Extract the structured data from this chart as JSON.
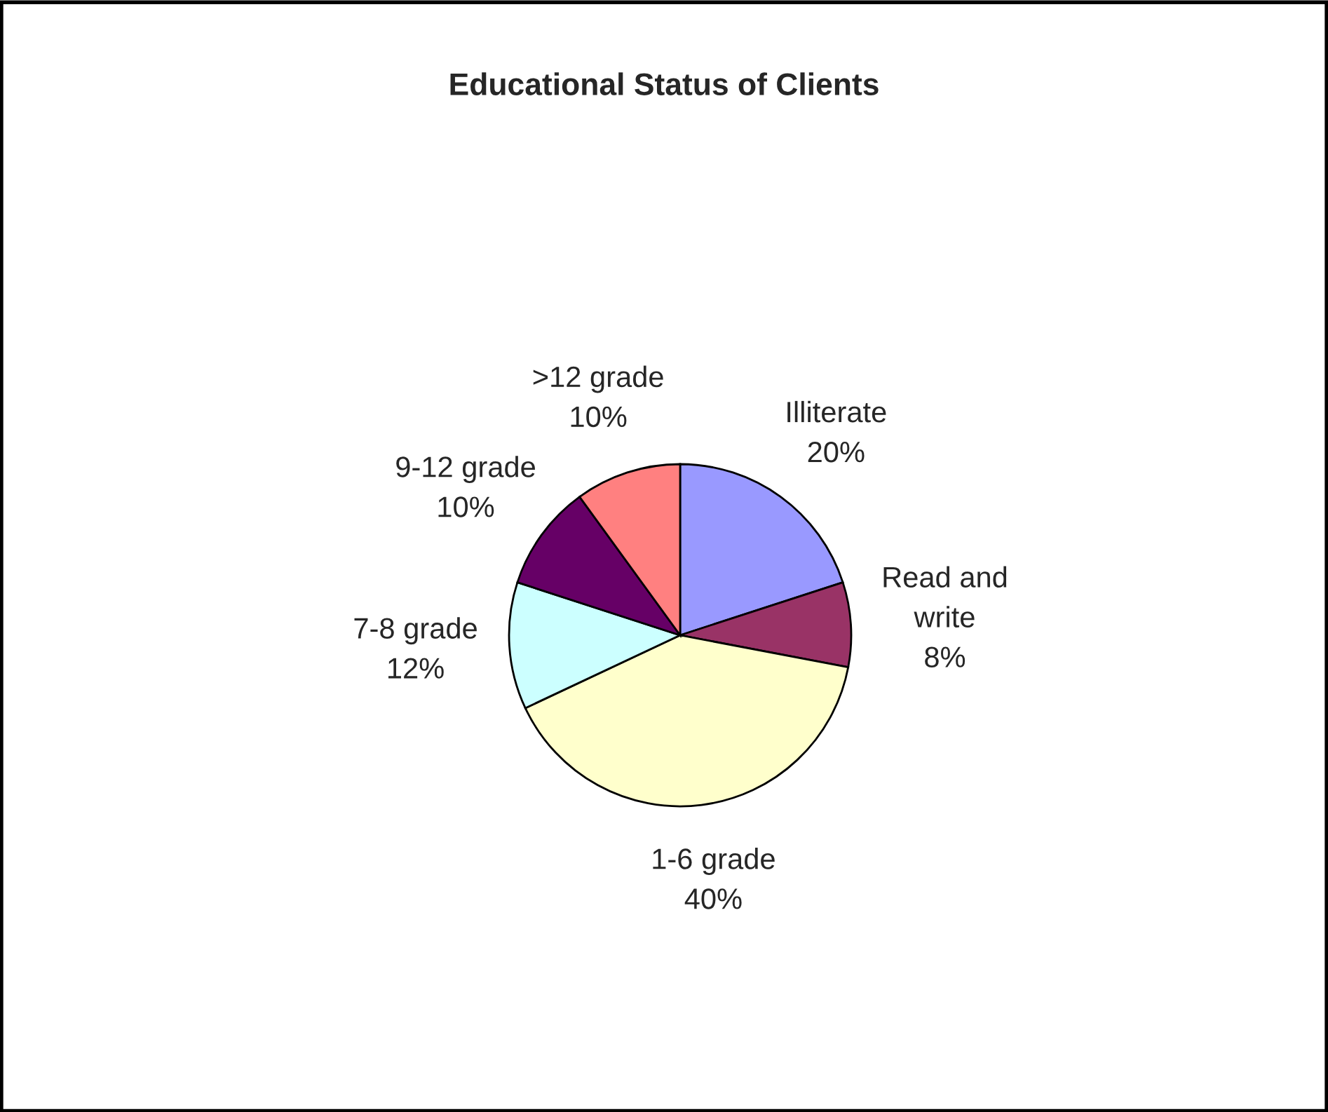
{
  "chart_data": {
    "type": "pie",
    "title": "Educational Status of Clients",
    "categories": [
      "Illiterate",
      "Read and\nwrite",
      "1-6 grade",
      "7-8 grade",
      "9-12 grade",
      ">12 grade"
    ],
    "values": [
      20,
      8,
      40,
      12,
      10,
      10
    ],
    "value_labels": [
      "20%",
      "8%",
      "40%",
      "12%",
      "10%",
      "10%"
    ],
    "colors": [
      "#9999ff",
      "#993366",
      "#ffffcc",
      "#ccffff",
      "#660066",
      "#ff8080"
    ],
    "legend": false
  }
}
